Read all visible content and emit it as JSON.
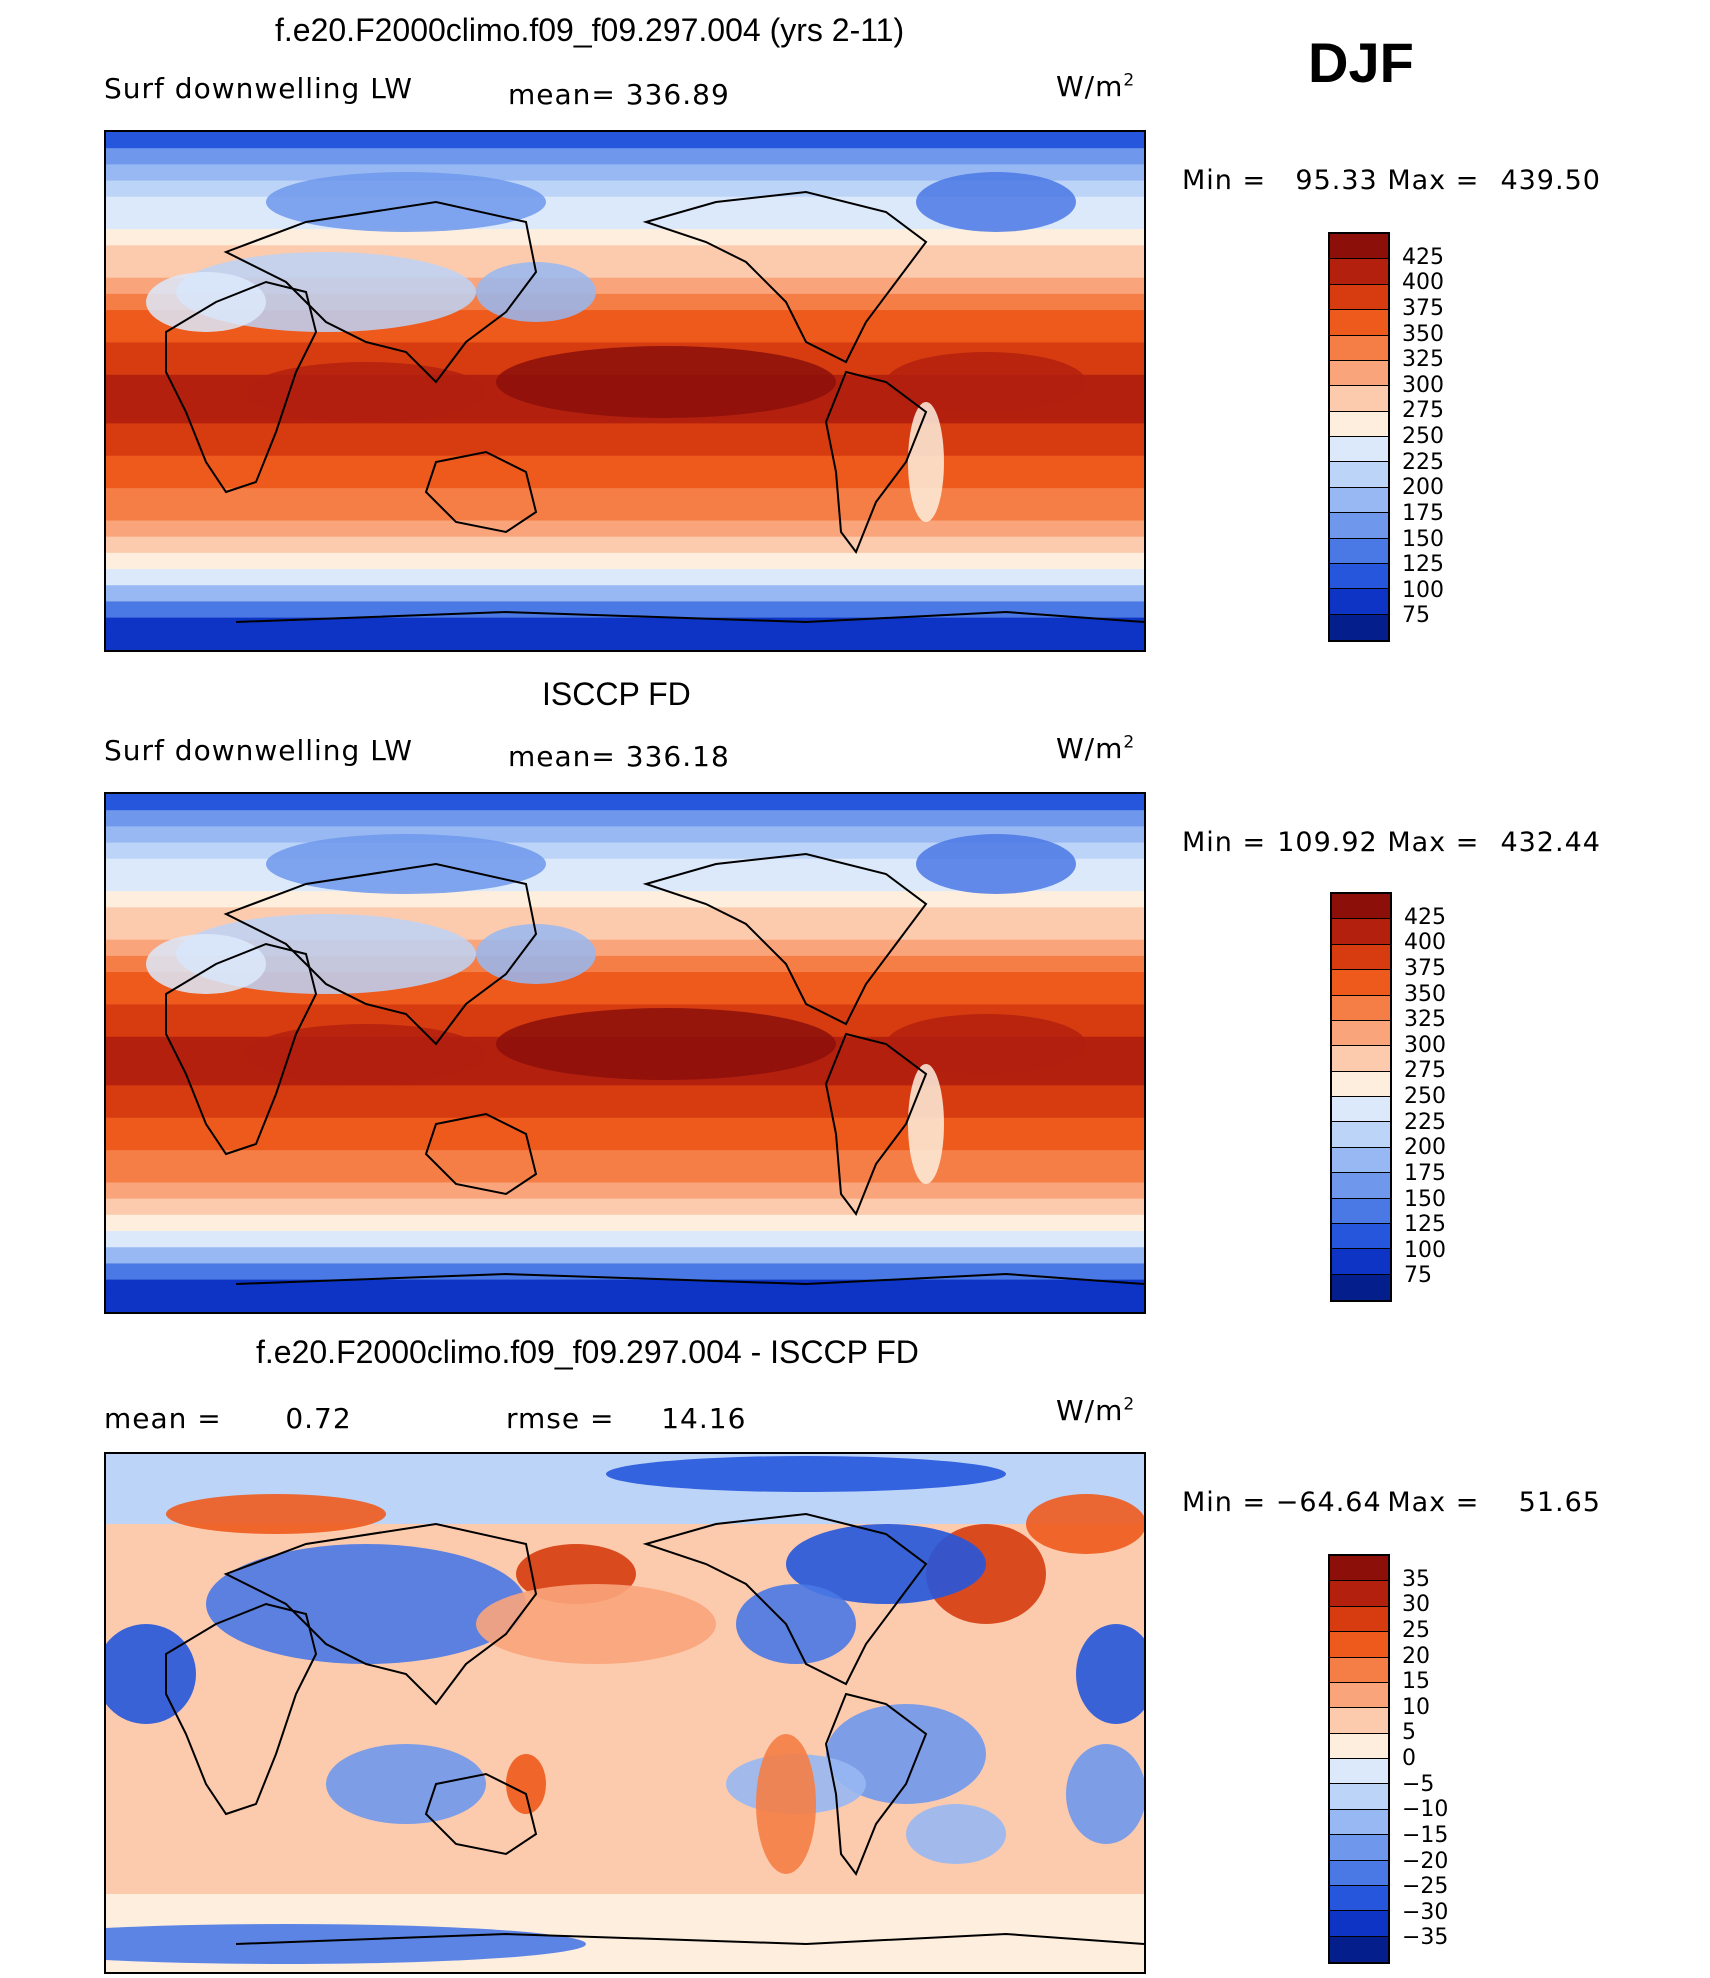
{
  "season": "DJF",
  "unit_base": "W/m",
  "unit_exp": "2",
  "panels": [
    {
      "title": "f.e20.F2000climo.f09_f09.297.004 (yrs 2-11)",
      "left_label": "Surf downwelling LW",
      "stat_label": "mean=",
      "stat_value": "336.89",
      "min_label": "Min =",
      "min_value": "95.33",
      "max_label": "Max =",
      "max_value": "439.50",
      "levels": [
        "425",
        "400",
        "375",
        "350",
        "325",
        "300",
        "275",
        "250",
        "225",
        "200",
        "175",
        "150",
        "125",
        "100",
        "75"
      ],
      "colors": [
        "#8c0f0a",
        "#b3200e",
        "#d63c10",
        "#ee5a1c",
        "#f57e46",
        "#f9a47b",
        "#fccbae",
        "#fdeedd",
        "#dce9fb",
        "#bcd4f7",
        "#97b8f2",
        "#6f98ec",
        "#4a78e5",
        "#2556db",
        "#0d34c4",
        "#041f8c"
      ]
    },
    {
      "title": "ISCCP FD",
      "left_label": "Surf downwelling LW",
      "stat_label": "mean=",
      "stat_value": "336.18",
      "min_label": "Min =",
      "min_value": "109.92",
      "max_label": "Max =",
      "max_value": "432.44",
      "levels": [
        "425",
        "400",
        "375",
        "350",
        "325",
        "300",
        "275",
        "250",
        "225",
        "200",
        "175",
        "150",
        "125",
        "100",
        "75"
      ],
      "colors": [
        "#8c0f0a",
        "#b3200e",
        "#d63c10",
        "#ee5a1c",
        "#f57e46",
        "#f9a47b",
        "#fccbae",
        "#fdeedd",
        "#dce9fb",
        "#bcd4f7",
        "#97b8f2",
        "#6f98ec",
        "#4a78e5",
        "#2556db",
        "#0d34c4",
        "#041f8c"
      ]
    },
    {
      "title": "f.e20.F2000climo.f09_f09.297.004 - ISCCP FD",
      "left_label": "mean =",
      "left_value": "0.72",
      "stat_label": "rmse =",
      "stat_value": "14.16",
      "min_label": "Min =",
      "min_value": "−64.64",
      "max_label": "Max =",
      "max_value": "51.65",
      "levels": [
        "35",
        "30",
        "25",
        "20",
        "15",
        "10",
        "5",
        "0",
        "−5",
        "−10",
        "−15",
        "−20",
        "−25",
        "−30",
        "−35"
      ],
      "colors": [
        "#8c0f0a",
        "#b3200e",
        "#d63c10",
        "#ee5a1c",
        "#f57e46",
        "#f9a47b",
        "#fccbae",
        "#fdeedd",
        "#dce9fb",
        "#bcd4f7",
        "#97b8f2",
        "#6f98ec",
        "#4a78e5",
        "#2556db",
        "#0d34c4",
        "#041f8c"
      ]
    }
  ],
  "chart_data": [
    {
      "type": "heatmap",
      "title": "f.e20.F2000climo.f09_f09.297.004 (yrs 2-11)",
      "variable": "Surf downwelling LW",
      "units": "W/m2",
      "mean": 336.89,
      "min": 95.33,
      "max": 439.5,
      "contour_levels": [
        75,
        100,
        125,
        150,
        175,
        200,
        225,
        250,
        275,
        300,
        325,
        350,
        375,
        400,
        425
      ],
      "zonal_bands_approx": [
        {
          "lat": 80,
          "value": 150
        },
        {
          "lat": 60,
          "value": 250
        },
        {
          "lat": 40,
          "value": 320
        },
        {
          "lat": 20,
          "value": 370
        },
        {
          "lat": 0,
          "value": 410
        },
        {
          "lat": -20,
          "value": 380
        },
        {
          "lat": -40,
          "value": 330
        },
        {
          "lat": -60,
          "value": 280
        },
        {
          "lat": -80,
          "value": 130
        }
      ]
    },
    {
      "type": "heatmap",
      "title": "ISCCP FD",
      "variable": "Surf downwelling LW",
      "units": "W/m2",
      "mean": 336.18,
      "min": 109.92,
      "max": 432.44,
      "contour_levels": [
        75,
        100,
        125,
        150,
        175,
        200,
        225,
        250,
        275,
        300,
        325,
        350,
        375,
        400,
        425
      ],
      "zonal_bands_approx": [
        {
          "lat": 80,
          "value": 170
        },
        {
          "lat": 60,
          "value": 250
        },
        {
          "lat": 40,
          "value": 320
        },
        {
          "lat": 20,
          "value": 370
        },
        {
          "lat": 0,
          "value": 405
        },
        {
          "lat": -20,
          "value": 375
        },
        {
          "lat": -40,
          "value": 330
        },
        {
          "lat": -60,
          "value": 285
        },
        {
          "lat": -80,
          "value": 140
        }
      ]
    },
    {
      "type": "heatmap",
      "title": "f.e20.F2000climo.f09_f09.297.004 - ISCCP FD",
      "units": "W/m2",
      "mean": 0.72,
      "rmse": 14.16,
      "min": -64.64,
      "max": 51.65,
      "contour_levels": [
        -35,
        -30,
        -25,
        -20,
        -15,
        -10,
        -5,
        0,
        5,
        10,
        15,
        20,
        25,
        30,
        35
      ]
    }
  ]
}
